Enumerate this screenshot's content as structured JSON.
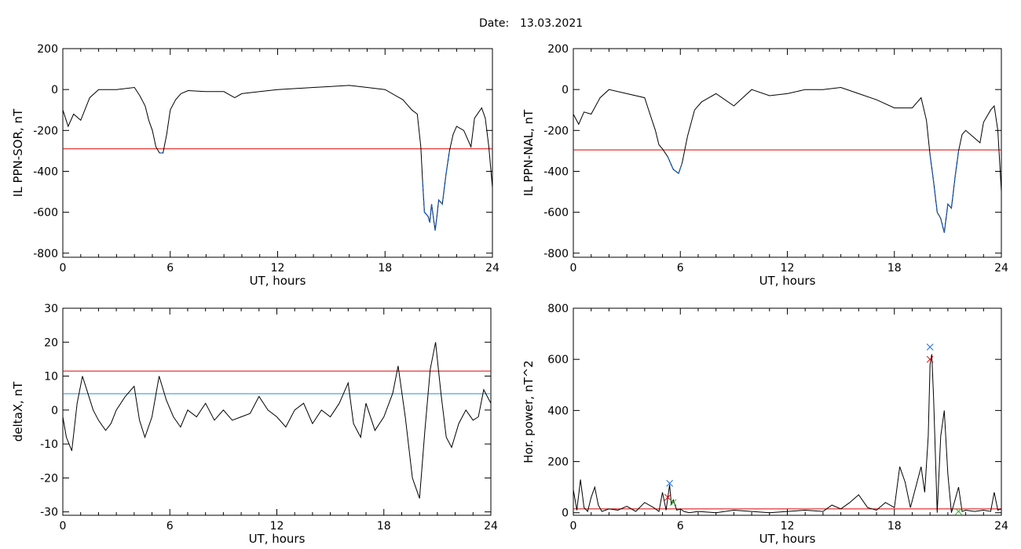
{
  "figure": {
    "title_label": "Date:",
    "title_value": "13.03.2021"
  },
  "colors": {
    "curve": "#000000",
    "threshold_red": "#dd0000",
    "threshold_blue": "#1f8fd0",
    "highlight": "#1560d0",
    "marker_blue": "#1f6fd0",
    "marker_red": "#dd0000",
    "marker_green": "#22bb22"
  },
  "chart_data": [
    {
      "id": "sor",
      "type": "line",
      "xlabel": "UT, hours",
      "ylabel": "IL PPN-SOR, nT",
      "xlim": [
        0,
        24
      ],
      "ylim": [
        -820,
        200
      ],
      "xticks": [
        0,
        6,
        12,
        18,
        24
      ],
      "yticks": [
        200,
        0,
        -200,
        -400,
        -600,
        -800
      ],
      "threshold": -290,
      "series": [
        {
          "x": [
            0,
            0.3,
            0.6,
            1.0,
            1.5,
            2.0,
            3.0,
            4.0,
            4.3,
            4.6,
            4.8,
            5.0,
            5.2,
            5.4,
            5.6,
            5.8,
            6.0,
            6.3,
            6.6,
            7.0,
            8.0,
            9.0,
            9.6,
            10.0,
            11.0,
            12.0,
            13.0,
            14.0,
            15.0,
            16.0,
            17.0,
            18.0,
            19.0,
            19.5,
            19.8,
            20.0,
            20.1,
            20.2,
            20.4,
            20.5,
            20.6,
            20.8,
            20.9,
            21.0,
            21.2,
            21.4,
            21.6,
            21.8,
            22.0,
            22.4,
            22.8,
            23.0,
            23.4,
            23.6,
            23.8,
            24.0
          ],
          "y": [
            -100,
            -180,
            -120,
            -150,
            -40,
            0,
            0,
            10,
            -30,
            -80,
            -150,
            -200,
            -280,
            -310,
            -310,
            -220,
            -100,
            -50,
            -20,
            -5,
            -10,
            -10,
            -40,
            -20,
            -10,
            0,
            5,
            10,
            15,
            20,
            10,
            0,
            -50,
            -100,
            -120,
            -280,
            -450,
            -600,
            -620,
            -650,
            -560,
            -690,
            -620,
            -540,
            -560,
            -420,
            -300,
            -220,
            -180,
            -200,
            -280,
            -140,
            -90,
            -140,
            -280,
            -480
          ]
        }
      ]
    },
    {
      "id": "nal",
      "type": "line",
      "xlabel": "UT, hours",
      "ylabel": "IL PPN-NAL, nT",
      "xlim": [
        0,
        24
      ],
      "ylim": [
        -820,
        200
      ],
      "xticks": [
        0,
        6,
        12,
        18,
        24
      ],
      "yticks": [
        200,
        0,
        -200,
        -400,
        -600,
        -800
      ],
      "threshold": -295,
      "series": [
        {
          "x": [
            0,
            0.3,
            0.6,
            1.0,
            1.5,
            2.0,
            3.0,
            4.0,
            4.3,
            4.6,
            4.8,
            5.0,
            5.3,
            5.6,
            5.9,
            6.1,
            6.4,
            6.8,
            7.2,
            8.0,
            9.0,
            10.0,
            11.0,
            12.0,
            13.0,
            14.0,
            15.0,
            16.0,
            17.0,
            18.0,
            19.0,
            19.5,
            19.8,
            20.0,
            20.2,
            20.4,
            20.6,
            20.8,
            21.0,
            21.2,
            21.4,
            21.6,
            21.8,
            22.0,
            22.4,
            22.8,
            23.0,
            23.4,
            23.6,
            23.8,
            24.0
          ],
          "y": [
            -120,
            -170,
            -110,
            -120,
            -40,
            0,
            -20,
            -40,
            -120,
            -200,
            -270,
            -290,
            -330,
            -390,
            -410,
            -360,
            -230,
            -100,
            -60,
            -20,
            -80,
            0,
            -30,
            -20,
            0,
            0,
            10,
            -20,
            -50,
            -90,
            -90,
            -40,
            -150,
            -320,
            -450,
            -600,
            -630,
            -700,
            -560,
            -580,
            -430,
            -300,
            -220,
            -200,
            -230,
            -260,
            -160,
            -100,
            -80,
            -200,
            -500
          ]
        }
      ]
    },
    {
      "id": "deltax",
      "type": "line",
      "xlabel": "UT, hours",
      "ylabel": "deltaX, nT",
      "xlim": [
        0,
        24
      ],
      "ylim": [
        -31,
        30
      ],
      "xticks": [
        0,
        6,
        12,
        18,
        24
      ],
      "yticks": [
        30,
        20,
        10,
        0,
        -10,
        -20,
        -30
      ],
      "thresholds": [
        {
          "value": 11.5,
          "color": "threshold_red"
        },
        {
          "value": 4.8,
          "color": "threshold_blue"
        }
      ],
      "series": [
        {
          "x": [
            0,
            0.2,
            0.5,
            0.8,
            1.1,
            1.4,
            1.7,
            2.0,
            2.4,
            2.7,
            3.0,
            3.5,
            4.0,
            4.3,
            4.6,
            5.0,
            5.4,
            5.8,
            6.2,
            6.6,
            7.0,
            7.5,
            8.0,
            8.5,
            9.0,
            9.5,
            10.0,
            10.5,
            11.0,
            11.5,
            12.0,
            12.5,
            13.0,
            13.5,
            14.0,
            14.5,
            15.0,
            15.5,
            16.0,
            16.3,
            16.7,
            17.0,
            17.5,
            18.0,
            18.5,
            18.8,
            19.2,
            19.6,
            20.0,
            20.3,
            20.6,
            20.9,
            21.2,
            21.5,
            21.8,
            22.2,
            22.6,
            23.0,
            23.3,
            23.6,
            24.0
          ],
          "y": [
            -2,
            -8,
            -12,
            2,
            10,
            5,
            0,
            -3,
            -6,
            -4,
            0,
            4,
            7,
            -3,
            -8,
            -2,
            10,
            3,
            -2,
            -5,
            0,
            -2,
            2,
            -3,
            0,
            -3,
            -2,
            -1,
            4,
            0,
            -2,
            -5,
            0,
            2,
            -4,
            0,
            -2,
            2,
            8,
            -4,
            -8,
            2,
            -6,
            -2,
            5,
            13,
            -2,
            -20,
            -26,
            -6,
            12,
            20,
            5,
            -8,
            -11,
            -4,
            0,
            -3,
            -2,
            6,
            2
          ]
        }
      ]
    },
    {
      "id": "power",
      "type": "line",
      "xlabel": "UT, hours",
      "ylabel": "Hor. power, nT^2",
      "xlim": [
        0,
        24
      ],
      "ylim": [
        -10,
        800
      ],
      "xticks": [
        0,
        6,
        12,
        18,
        24
      ],
      "yticks": [
        800,
        600,
        400,
        200,
        0
      ],
      "threshold": 15,
      "markers": [
        {
          "x": 5.4,
          "y": 115,
          "color": "marker_blue"
        },
        {
          "x": 5.3,
          "y": 60,
          "color": "marker_red"
        },
        {
          "x": 5.6,
          "y": 40,
          "color": "marker_green"
        },
        {
          "x": 20.0,
          "y": 648,
          "color": "marker_blue"
        },
        {
          "x": 20.0,
          "y": 600,
          "color": "marker_red"
        },
        {
          "x": 21.6,
          "y": 5,
          "color": "marker_green"
        }
      ],
      "series": [
        {
          "x": [
            0,
            0.2,
            0.4,
            0.6,
            0.8,
            1.0,
            1.2,
            1.4,
            1.6,
            2.0,
            2.5,
            3.0,
            3.5,
            4.0,
            4.5,
            4.8,
            5.0,
            5.2,
            5.4,
            5.5,
            5.6,
            5.8,
            6.0,
            6.2,
            6.5,
            7.0,
            8.0,
            9.0,
            10.0,
            11.0,
            12.0,
            13.0,
            14.0,
            14.5,
            15.0,
            15.5,
            16.0,
            16.5,
            17.0,
            17.5,
            18.0,
            18.3,
            18.6,
            18.9,
            19.2,
            19.5,
            19.7,
            19.9,
            20.0,
            20.1,
            20.2,
            20.4,
            20.6,
            20.8,
            21.0,
            21.2,
            21.4,
            21.6,
            21.8,
            22.0,
            22.5,
            23.0,
            23.4,
            23.6,
            23.8,
            24.0
          ],
          "y": [
            90,
            10,
            130,
            20,
            5,
            60,
            100,
            30,
            5,
            15,
            10,
            25,
            5,
            40,
            20,
            5,
            80,
            10,
            110,
            30,
            50,
            10,
            15,
            5,
            0,
            5,
            0,
            10,
            5,
            0,
            5,
            10,
            5,
            30,
            15,
            40,
            70,
            20,
            10,
            40,
            20,
            180,
            120,
            20,
            100,
            180,
            80,
            300,
            580,
            620,
            450,
            0,
            300,
            400,
            150,
            0,
            50,
            100,
            5,
            10,
            5,
            10,
            5,
            80,
            10,
            15
          ]
        }
      ]
    }
  ]
}
